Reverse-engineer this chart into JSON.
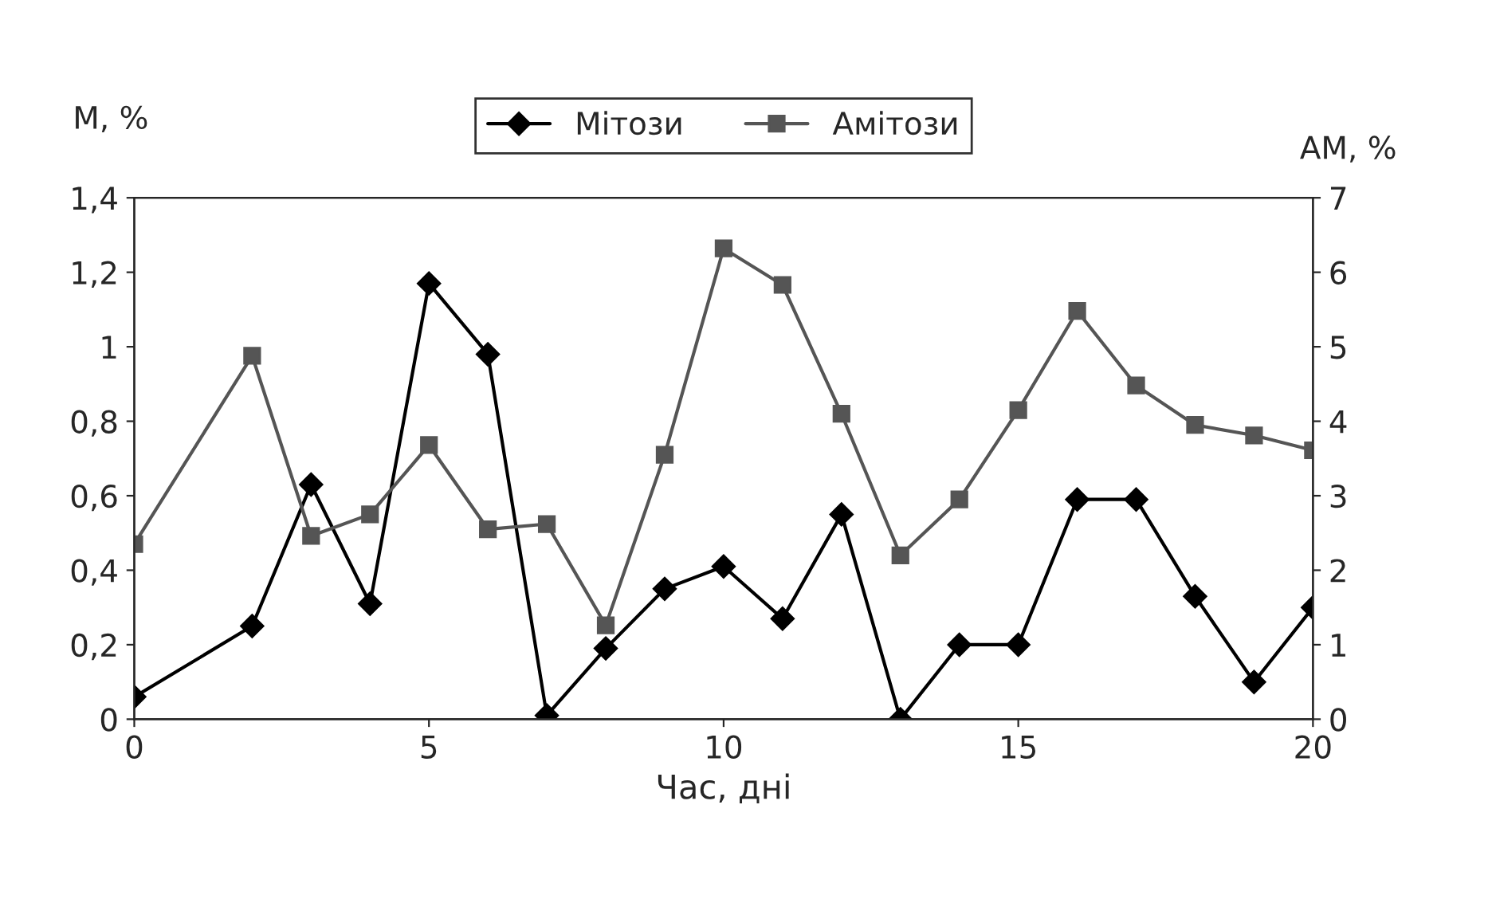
{
  "chart_data": {
    "type": "line",
    "xlabel": "Час, дні",
    "ylabel": "M, %",
    "y2label": "AM, %",
    "x": [
      0,
      2,
      3,
      4,
      5,
      6,
      7,
      8,
      9,
      10,
      11,
      12,
      13,
      14,
      15,
      16,
      17,
      18,
      19,
      20
    ],
    "series": [
      {
        "name": "Мітози",
        "color": "#000000",
        "marker": "diamond",
        "values": [
          0.06,
          0.25,
          0.63,
          0.31,
          1.17,
          0.98,
          0.01,
          0.19,
          0.35,
          0.41,
          0.27,
          0.55,
          0.0,
          0.2,
          0.2,
          0.59,
          0.59,
          0.33,
          0.1,
          0.3
        ]
      },
      {
        "name": "Амітози",
        "color": "#555555",
        "marker": "square",
        "axis": "y2",
        "values": [
          2.35,
          4.88,
          2.46,
          2.75,
          3.68,
          2.55,
          2.62,
          1.26,
          3.55,
          6.32,
          5.83,
          4.1,
          2.2,
          2.95,
          4.15,
          5.48,
          4.48,
          3.95,
          3.81,
          3.61
        ]
      }
    ],
    "xlim": [
      0,
      20
    ],
    "xticks": [
      0,
      5,
      10,
      15,
      20
    ],
    "ylim": [
      0,
      1.4
    ],
    "yticks": [
      {
        "value": 0,
        "label": "0"
      },
      {
        "value": 0.2,
        "label": "0,2"
      },
      {
        "value": 0.4,
        "label": "0,4"
      },
      {
        "value": 0.6,
        "label": "0,6"
      },
      {
        "value": 0.8,
        "label": "0,8"
      },
      {
        "value": 1,
        "label": "1"
      },
      {
        "value": 1.2,
        "label": "1,2"
      },
      {
        "value": 1.4,
        "label": "1,4"
      }
    ],
    "y2lim": [
      0,
      7
    ],
    "y2ticks": [
      0,
      1,
      2,
      3,
      4,
      5,
      6,
      7
    ],
    "legend": "top",
    "grid": false,
    "line_style": "solid"
  }
}
